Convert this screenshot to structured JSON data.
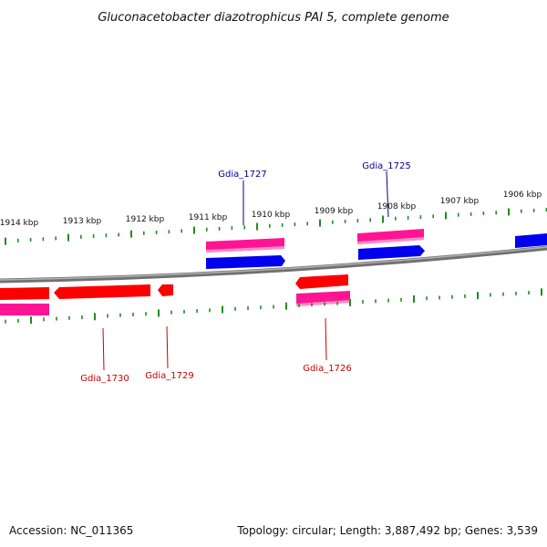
{
  "title": "Gluconacetobacter diazotrophicus PAI 5, complete genome",
  "footer": {
    "accession": "Accession: NC_011365",
    "summary": "Topology: circular; Length: 3,887,492 bp; Genes: 3,539"
  },
  "colors": {
    "forward_gene": "#0000ee",
    "reverse_gene": "#ff0000",
    "cds_band": "#ff1493",
    "tick": "#228b22",
    "backbone": "#808080",
    "label_forward": "#00008b",
    "label_reverse": "#cc0000"
  },
  "scale": {
    "tick_labels": [
      "1914 kbp",
      "1913 kbp",
      "1912 kbp",
      "1911 kbp",
      "1910 kbp",
      "1909 kbp",
      "1908 kbp",
      "1907 kbp",
      "1906 kbp"
    ]
  },
  "genes": [
    {
      "label": "Gdia_1727",
      "strand": "forward"
    },
    {
      "label": "Gdia_1725",
      "strand": "forward"
    },
    {
      "label": "Gdia_1730",
      "strand": "reverse"
    },
    {
      "label": "Gdia_1729",
      "strand": "reverse"
    },
    {
      "label": "Gdia_1726",
      "strand": "reverse"
    }
  ]
}
